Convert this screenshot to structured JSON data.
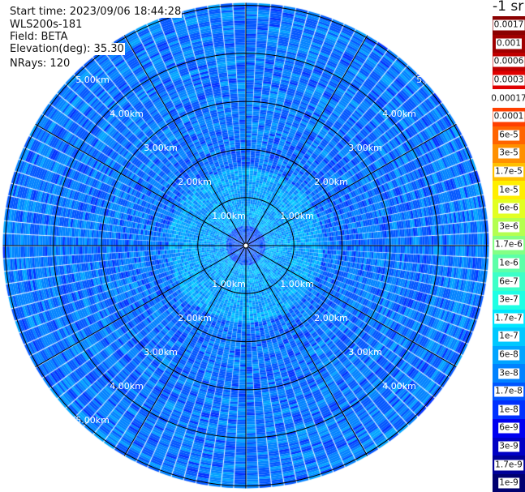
{
  "header": {
    "start_time": "Start time: 2023/09/06 18:44:28",
    "instrument": "WLS200s-181",
    "field": "Field: BETA",
    "elevation": "Elevation(deg): 35.30",
    "nrays": "NRays: 120"
  },
  "chart_data": {
    "type": "heatmap",
    "projection": "polar",
    "field": "BETA",
    "n_rays": 120,
    "range_rings": [
      "1.00km",
      "2.00km",
      "3.00km",
      "4.00km",
      "5.00km"
    ],
    "range_ring_values_km": [
      1,
      2,
      3,
      4,
      5
    ],
    "max_range_km": 5.05,
    "spoke_spacing_deg": 30,
    "dominant_values": "mostly 1.7e-8 to 1.7e-7, higher (1e-7 to 1e-6) near 1 km range",
    "colorbar": {
      "title": "-1 sr",
      "scale": "log",
      "labels": [
        "0.0017",
        "0.001",
        "0.0006",
        "0.0003",
        "0.00017",
        "0.0001",
        "6e-5",
        "3e-5",
        "1.7e-5",
        "1e-5",
        "6e-6",
        "3e-6",
        "1.7e-6",
        "1e-6",
        "6e-7",
        "3e-7",
        "1.7e-7",
        "1e-7",
        "6e-8",
        "3e-8",
        "1.7e-8",
        "1e-8",
        "6e-9",
        "3e-9",
        "1.7e-9",
        "1e-9"
      ],
      "colors": [
        "#8b0000",
        "#a00000",
        "#c00000",
        "#e00000",
        "#ffffff",
        "#ff4000",
        "#ff6400",
        "#ff9000",
        "#ffc000",
        "#ffee00",
        "#e2ff22",
        "#b4ff50",
        "#84ff84",
        "#5cffa8",
        "#3cffc8",
        "#1effe4",
        "#00e6ff",
        "#00c8ff",
        "#00a4ff",
        "#0082ff",
        "#0056ff",
        "#0030ff",
        "#0000f0",
        "#0000c4",
        "#000098",
        "#000070"
      ]
    }
  }
}
